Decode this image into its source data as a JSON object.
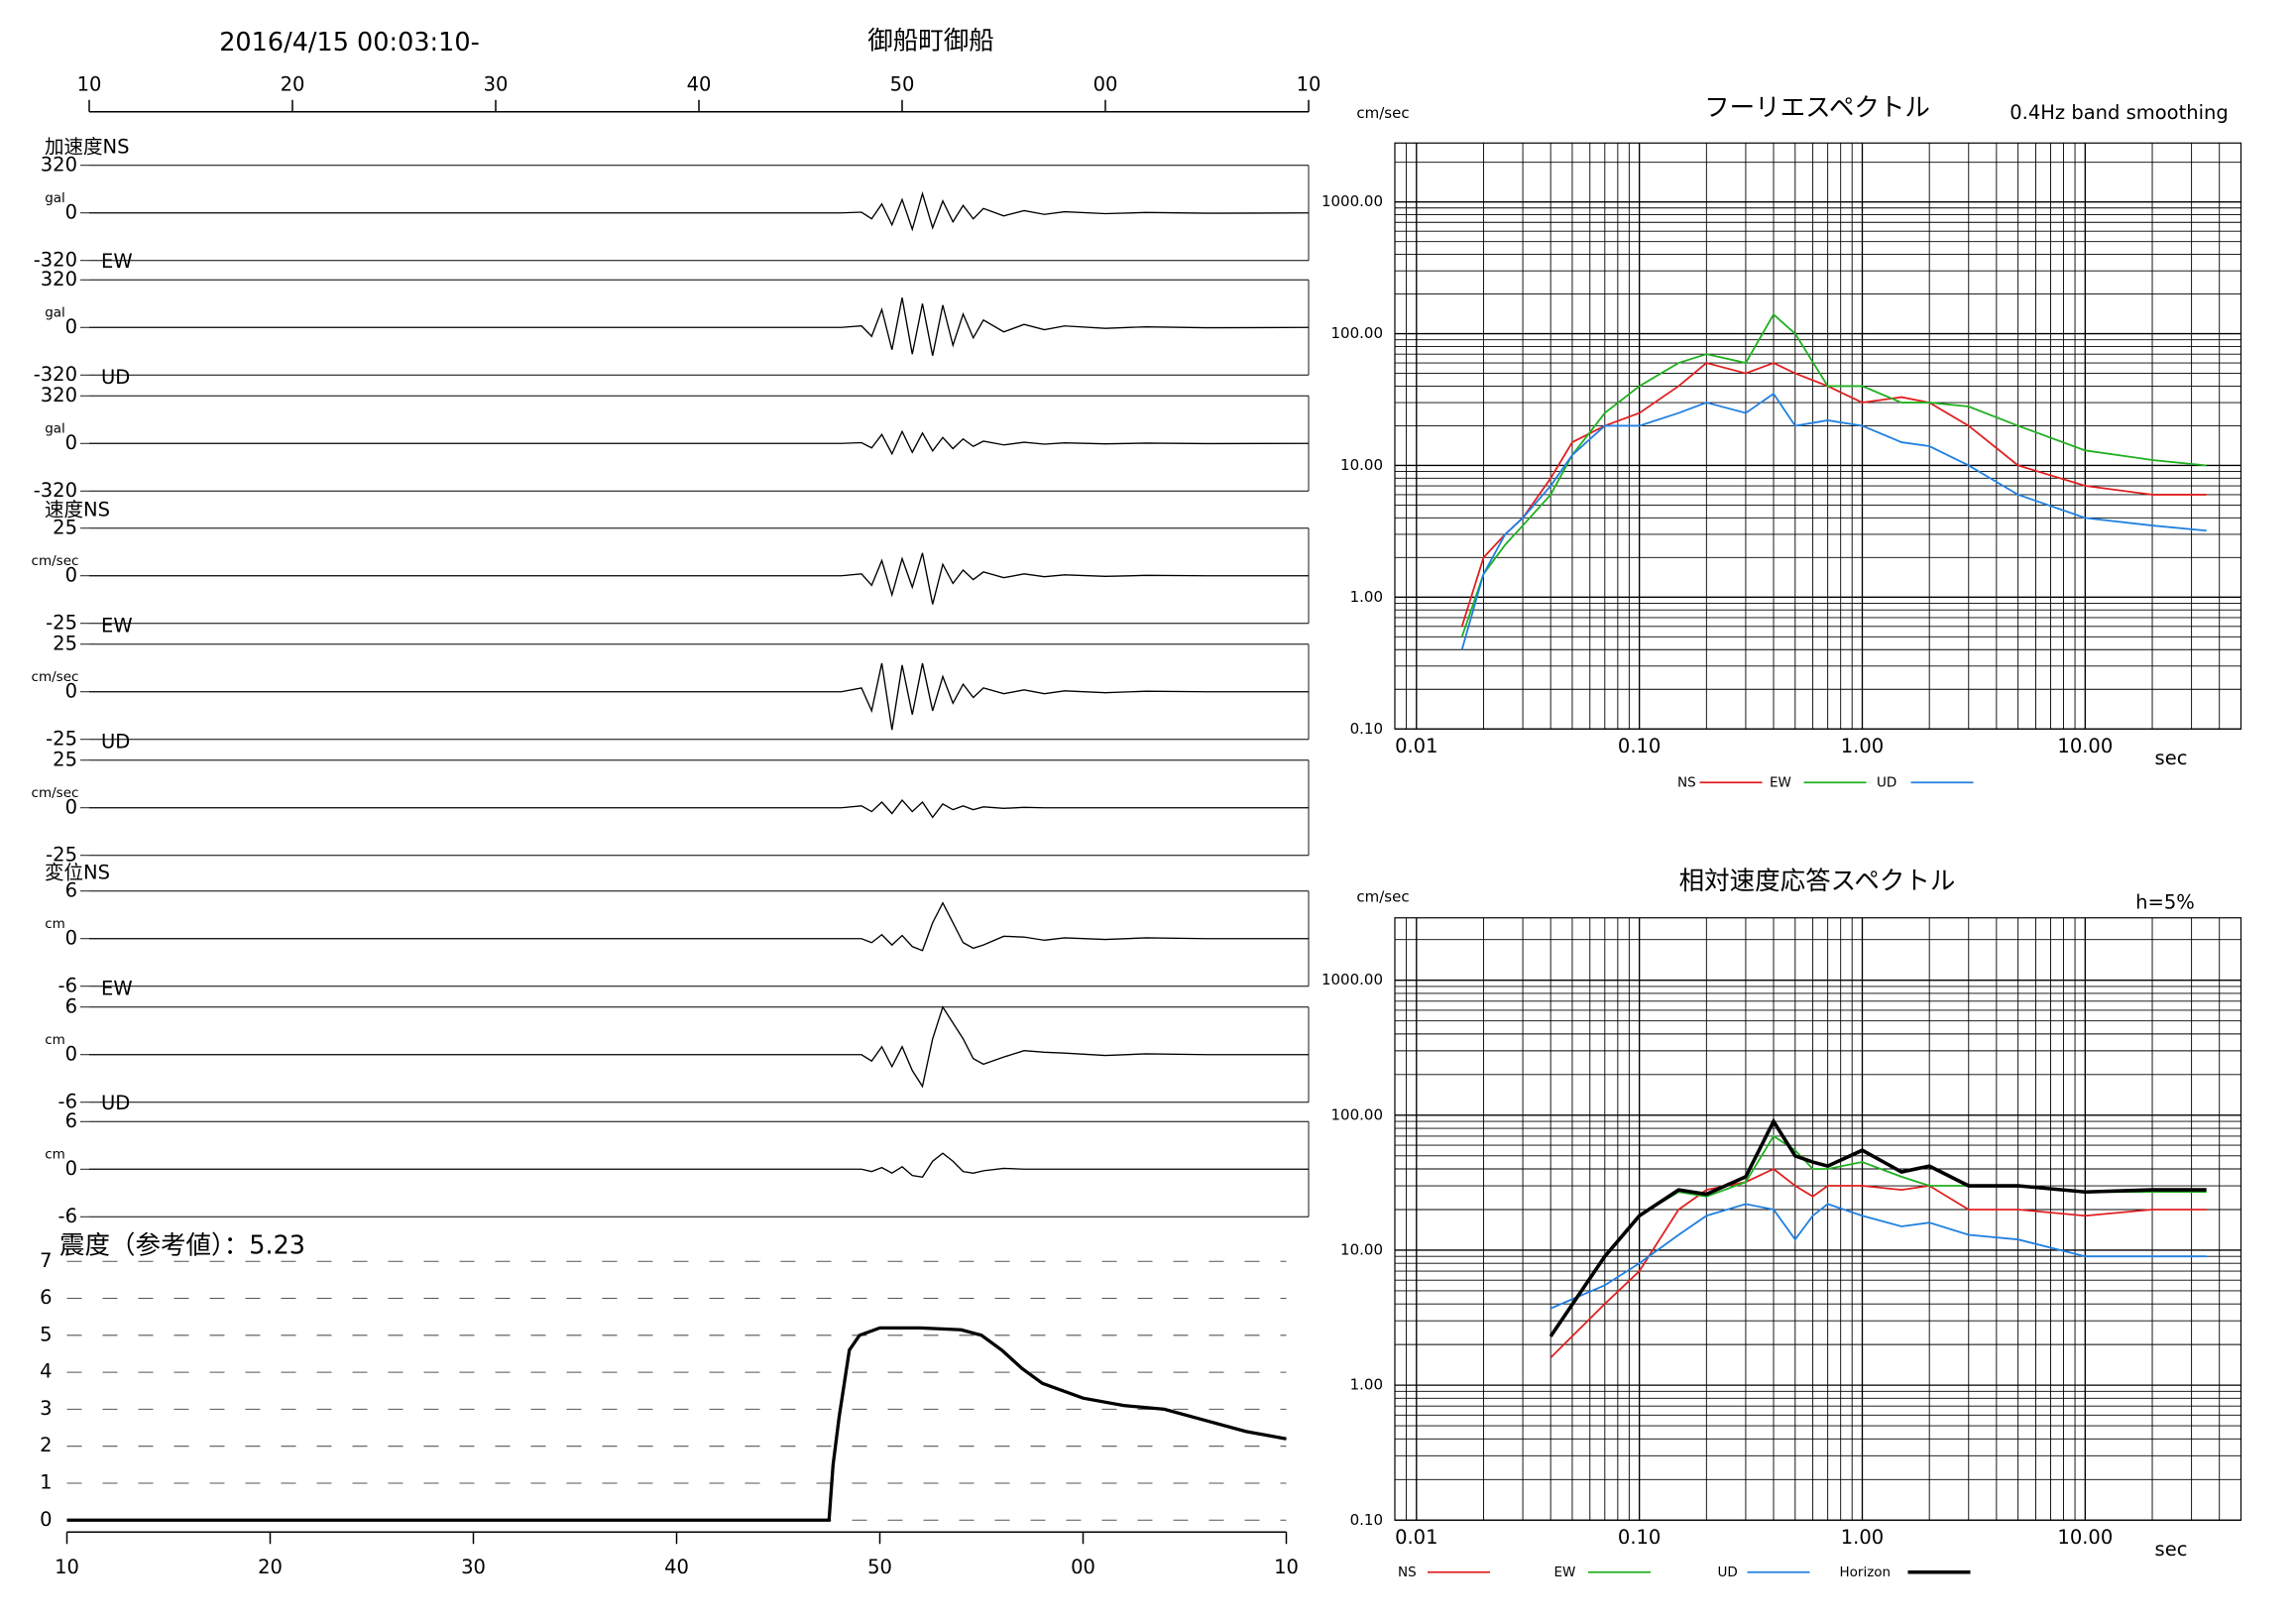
{
  "header": {
    "datetime": "2016/4/15 00:03:10-",
    "station": "御船町御船"
  },
  "chart_data": [
    {
      "type": "line",
      "title": "加速度NS",
      "y_label": "gal",
      "color": "#000000",
      "xlim": [
        10,
        70
      ],
      "xticks": [
        10,
        20,
        30,
        40,
        50,
        {
          "value": 60,
          "label": "00"
        },
        {
          "value": 70,
          "label": "10"
        }
      ],
      "ylim": [
        -320,
        320
      ],
      "yticks": [
        -320,
        0,
        320
      ],
      "x": [
        10,
        47,
        48,
        48.5,
        49,
        49.5,
        50,
        50.5,
        51,
        51.5,
        52,
        52.5,
        53,
        53.5,
        54,
        55,
        56,
        57,
        58,
        60,
        62,
        65,
        70
      ],
      "values": [
        0,
        0,
        5,
        -40,
        60,
        -80,
        90,
        -110,
        130,
        -100,
        80,
        -60,
        50,
        -40,
        30,
        -20,
        15,
        -10,
        8,
        -5,
        3,
        -2,
        0
      ]
    },
    {
      "type": "line",
      "title": "EW",
      "y_label": "gal",
      "color": "#000000",
      "xlim": [
        10,
        70
      ],
      "ylim": [
        -320,
        320
      ],
      "yticks": [
        -320,
        0,
        320
      ],
      "x": [
        10,
        47,
        48,
        48.5,
        49,
        49.5,
        50,
        50.5,
        51,
        51.5,
        52,
        52.5,
        53,
        53.5,
        54,
        55,
        56,
        57,
        58,
        60,
        62,
        65,
        70
      ],
      "values": [
        0,
        0,
        10,
        -60,
        120,
        -150,
        200,
        -180,
        160,
        -190,
        150,
        -120,
        90,
        -70,
        50,
        -30,
        20,
        -15,
        10,
        -6,
        4,
        -2,
        0
      ]
    },
    {
      "type": "line",
      "title": "UD",
      "y_label": "gal",
      "color": "#000000",
      "xlim": [
        10,
        70
      ],
      "ylim": [
        -320,
        320
      ],
      "yticks": [
        -320,
        0,
        320
      ],
      "x": [
        10,
        47,
        48,
        48.5,
        49,
        49.5,
        50,
        50.5,
        51,
        51.5,
        52,
        52.5,
        53,
        53.5,
        54,
        55,
        56,
        57,
        58,
        60,
        62,
        65,
        70
      ],
      "values": [
        0,
        0,
        5,
        -30,
        60,
        -70,
        80,
        -60,
        70,
        -50,
        40,
        -35,
        30,
        -20,
        15,
        -10,
        8,
        -5,
        4,
        -3,
        2,
        -1,
        0
      ]
    },
    {
      "type": "line",
      "title": "速度NS",
      "y_label": "cm/sec",
      "color": "#000000",
      "xlim": [
        10,
        70
      ],
      "ylim": [
        -25,
        25
      ],
      "yticks": [
        -25,
        0,
        25
      ],
      "x": [
        10,
        47,
        48,
        48.5,
        49,
        49.5,
        50,
        50.5,
        51,
        51.5,
        52,
        52.5,
        53,
        53.5,
        54,
        55,
        56,
        57,
        58,
        60,
        62,
        65,
        70
      ],
      "values": [
        0,
        0,
        1,
        -5,
        8,
        -10,
        9,
        -6,
        12,
        -15,
        6,
        -4,
        3,
        -2,
        2,
        -1,
        1,
        -0.5,
        0.5,
        -0.3,
        0.2,
        0,
        0
      ]
    },
    {
      "type": "line",
      "title": "EW",
      "y_label": "cm/sec",
      "color": "#000000",
      "xlim": [
        10,
        70
      ],
      "ylim": [
        -25,
        25
      ],
      "yticks": [
        -25,
        0,
        25
      ],
      "x": [
        10,
        47,
        48,
        48.5,
        49,
        49.5,
        50,
        50.5,
        51,
        51.5,
        52,
        52.5,
        53,
        53.5,
        54,
        55,
        56,
        57,
        58,
        60,
        62,
        65,
        70
      ],
      "values": [
        0,
        0,
        2,
        -10,
        15,
        -20,
        14,
        -12,
        15,
        -10,
        8,
        -6,
        4,
        -3,
        2,
        -1,
        1,
        -1,
        0.5,
        -0.5,
        0.3,
        0,
        0
      ]
    },
    {
      "type": "line",
      "title": "UD",
      "y_label": "cm/sec",
      "color": "#000000",
      "xlim": [
        10,
        70
      ],
      "ylim": [
        -25,
        25
      ],
      "yticks": [
        -25,
        0,
        25
      ],
      "x": [
        10,
        47,
        48,
        48.5,
        49,
        49.5,
        50,
        50.5,
        51,
        51.5,
        52,
        52.5,
        53,
        53.5,
        54,
        55,
        56,
        57,
        58,
        60,
        62,
        65,
        70
      ],
      "values": [
        0,
        0,
        1,
        -2,
        3,
        -3,
        4,
        -2,
        3,
        -5,
        2,
        -1,
        1,
        -1,
        0.5,
        -0.3,
        0.2,
        0,
        0,
        0,
        0,
        0,
        0
      ]
    },
    {
      "type": "line",
      "title": "変位NS",
      "y_label": "cm",
      "color": "#000000",
      "xlim": [
        10,
        70
      ],
      "ylim": [
        -6,
        6
      ],
      "yticks": [
        -6,
        0,
        6
      ],
      "x": [
        10,
        47,
        48,
        48.5,
        49,
        49.5,
        50,
        50.5,
        51,
        51.5,
        52,
        52.5,
        53,
        53.5,
        54,
        55,
        56,
        57,
        58,
        60,
        62,
        65,
        70
      ],
      "values": [
        0,
        0,
        0,
        -0.5,
        0.5,
        -0.8,
        0.4,
        -1,
        -1.5,
        2,
        4.5,
        2,
        -0.5,
        -1.2,
        -0.8,
        0.3,
        0.2,
        -0.2,
        0.1,
        -0.1,
        0.1,
        0,
        0
      ]
    },
    {
      "type": "line",
      "title": "EW",
      "y_label": "cm",
      "color": "#000000",
      "xlim": [
        10,
        70
      ],
      "ylim": [
        -6,
        6
      ],
      "yticks": [
        -6,
        0,
        6
      ],
      "x": [
        10,
        47,
        48,
        48.5,
        49,
        49.5,
        50,
        50.5,
        51,
        51.5,
        52,
        52.5,
        53,
        53.5,
        54,
        55,
        56,
        57,
        58,
        60,
        62,
        65,
        70
      ],
      "values": [
        0,
        0,
        0,
        -0.8,
        1,
        -1.5,
        1,
        -2,
        -4,
        2,
        6,
        4,
        2,
        -0.5,
        -1.2,
        -0.3,
        0.5,
        0.3,
        0.2,
        -0.1,
        0.1,
        0,
        0
      ]
    },
    {
      "type": "line",
      "title": "UD",
      "y_label": "cm",
      "color": "#000000",
      "xlim": [
        10,
        70
      ],
      "ylim": [
        -6,
        6
      ],
      "yticks": [
        -6,
        0,
        6
      ],
      "x": [
        10,
        47,
        48,
        48.5,
        49,
        49.5,
        50,
        50.5,
        51,
        51.5,
        52,
        52.5,
        53,
        53.5,
        54,
        55,
        56,
        57,
        58,
        60,
        62,
        65,
        70
      ],
      "values": [
        0,
        0,
        0,
        -0.3,
        0.2,
        -0.5,
        0.3,
        -0.8,
        -1,
        1,
        2,
        1,
        -0.3,
        -0.5,
        -0.2,
        0.1,
        0,
        0,
        0,
        0,
        0,
        0,
        0
      ]
    },
    {
      "type": "line",
      "title": "震度（参考値）：5.23",
      "color": "#000000",
      "xlim": [
        10,
        70
      ],
      "xticks": [
        10,
        20,
        30,
        40,
        50,
        {
          "value": 60,
          "label": "00"
        },
        {
          "value": 70,
          "label": "10"
        }
      ],
      "ylim": [
        0,
        7
      ],
      "yticks": [
        0,
        1,
        2,
        3,
        4,
        5,
        6,
        7
      ],
      "x": [
        10,
        47.5,
        47.7,
        48,
        48.5,
        49,
        50,
        52,
        54,
        55,
        56,
        57,
        58,
        60,
        62,
        64,
        66,
        68,
        70
      ],
      "values": [
        0,
        0,
        1.5,
        2.8,
        4.6,
        5.0,
        5.2,
        5.2,
        5.15,
        5.0,
        4.6,
        4.1,
        3.7,
        3.3,
        3.1,
        3.0,
        2.7,
        2.4,
        2.2
      ]
    },
    {
      "type": "line",
      "title": "フーリエスペクトル",
      "subtitle": "0.4Hz band smoothing",
      "y_label": "cm/sec",
      "x_label": "sec",
      "xlog": true,
      "ylog": true,
      "grid": true,
      "xlim": [
        0.008,
        50
      ],
      "xticks": [
        {
          "value": 0.01,
          "label": "0.01"
        },
        {
          "value": 0.1,
          "label": "0.10"
        },
        {
          "value": 1,
          "label": "1.00"
        },
        {
          "value": 10,
          "label": "10.00"
        }
      ],
      "ylim": [
        0.1,
        2800
      ],
      "yticks": [
        {
          "value": 0.1,
          "label": "0.10"
        },
        {
          "value": 1,
          "label": "1.00"
        },
        {
          "value": 10,
          "label": "10.00"
        },
        {
          "value": 100,
          "label": "100.00"
        },
        {
          "value": 1000,
          "label": "1000.00"
        }
      ],
      "x": [
        0.016,
        0.02,
        0.025,
        0.03,
        0.04,
        0.05,
        0.07,
        0.1,
        0.15,
        0.2,
        0.3,
        0.4,
        0.5,
        0.7,
        1,
        1.5,
        2,
        3,
        5,
        10,
        20,
        35
      ],
      "series": [
        {
          "name": "NS",
          "color": "#e02020",
          "values": [
            0.6,
            2,
            3,
            4,
            8,
            15,
            20,
            25,
            40,
            60,
            50,
            60,
            50,
            40,
            30,
            33,
            30,
            20,
            10,
            7,
            6,
            6
          ]
        },
        {
          "name": "EW",
          "color": "#20b020",
          "values": [
            0.5,
            1.5,
            2.5,
            3.5,
            6,
            12,
            25,
            40,
            60,
            70,
            60,
            140,
            100,
            40,
            40,
            30,
            30,
            28,
            20,
            13,
            11,
            10
          ]
        },
        {
          "name": "UD",
          "color": "#2080e0",
          "values": [
            0.4,
            1.5,
            3,
            4,
            7,
            12,
            20,
            20,
            25,
            30,
            25,
            35,
            20,
            22,
            20,
            15,
            14,
            10,
            6,
            4,
            3.5,
            3.2
          ]
        }
      ]
    },
    {
      "type": "line",
      "title": "相対速度応答スペクトル",
      "subtitle": "h=5%",
      "y_label": "cm/sec",
      "x_label": "sec",
      "xlog": true,
      "ylog": true,
      "grid": true,
      "xlim": [
        0.008,
        50
      ],
      "xticks": [
        {
          "value": 0.01,
          "label": "0.01"
        },
        {
          "value": 0.1,
          "label": "0.10"
        },
        {
          "value": 1,
          "label": "1.00"
        },
        {
          "value": 10,
          "label": "10.00"
        }
      ],
      "ylim": [
        0.1,
        2900
      ],
      "yticks": [
        {
          "value": 0.1,
          "label": "0.10"
        },
        {
          "value": 1,
          "label": "1.00"
        },
        {
          "value": 10,
          "label": "10.00"
        },
        {
          "value": 100,
          "label": "100.00"
        },
        {
          "value": 1000,
          "label": "1000.00"
        }
      ],
      "x": [
        0.04,
        0.07,
        0.1,
        0.15,
        0.2,
        0.3,
        0.4,
        0.5,
        0.6,
        0.7,
        1,
        1.5,
        2,
        3,
        5,
        10,
        20,
        35
      ],
      "series": [
        {
          "name": "NS",
          "color": "#e02020",
          "values": [
            1.6,
            4,
            7,
            20,
            28,
            32,
            40,
            30,
            25,
            30,
            30,
            28,
            30,
            20,
            20,
            18,
            20,
            20
          ]
        },
        {
          "name": "EW",
          "color": "#20b020",
          "values": [
            2.3,
            9,
            18,
            27,
            25,
            32,
            70,
            55,
            40,
            40,
            45,
            35,
            30,
            30,
            30,
            27,
            27,
            27
          ]
        },
        {
          "name": "UD",
          "color": "#2080e0",
          "values": [
            3.7,
            5.5,
            8,
            13,
            18,
            22,
            20,
            12,
            18,
            22,
            18,
            15,
            16,
            13,
            12,
            9,
            9,
            9
          ]
        },
        {
          "name": "Horizon",
          "color": "#000000",
          "values": [
            2.3,
            9,
            18,
            28,
            26,
            35,
            90,
            50,
            45,
            42,
            55,
            38,
            42,
            30,
            30,
            27,
            28,
            28
          ]
        }
      ]
    }
  ]
}
